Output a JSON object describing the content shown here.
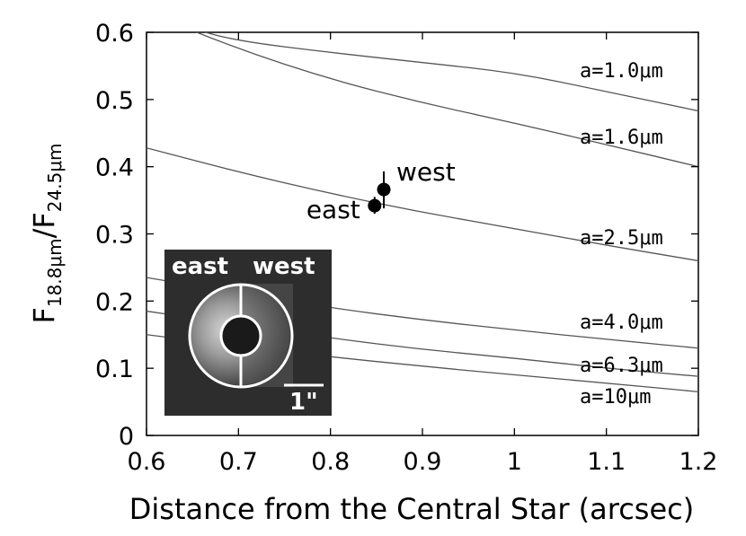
{
  "chart_data": {
    "type": "line",
    "xlabel": "Distance from the Central Star (arcsec)",
    "ylabel": "F18.8μm/F24.5μm",
    "ylabel_parts": {
      "base1": "F",
      "sub1": "18.8μm",
      "slash": "/",
      "base2": "F",
      "sub2": "24.5μm"
    },
    "xlim": [
      0.6,
      1.2
    ],
    "ylim": [
      0,
      0.6
    ],
    "x_ticks": [
      "0.6",
      "0.7",
      "0.8",
      "0.9",
      "1",
      "1.1",
      "1.2"
    ],
    "y_ticks": [
      "0",
      "0.1",
      "0.2",
      "0.3",
      "0.4",
      "0.5",
      "0.6"
    ],
    "grid": false,
    "series": [
      {
        "name": "a=1.0μm",
        "x": [
          0.63,
          0.65,
          0.7,
          0.8,
          0.9,
          1.0,
          1.1,
          1.2
        ],
        "y": [
          0.62,
          0.605,
          0.587,
          0.57,
          0.555,
          0.54,
          0.512,
          0.483
        ]
      },
      {
        "name": "a=1.6μm",
        "x": [
          0.6,
          0.7,
          0.8,
          0.9,
          1.0,
          1.1,
          1.2
        ],
        "y": [
          0.63,
          0.575,
          0.53,
          0.495,
          0.465,
          0.433,
          0.4
        ]
      },
      {
        "name": "a=2.5μm",
        "x": [
          0.6,
          0.7,
          0.8,
          0.9,
          1.0,
          1.1,
          1.2
        ],
        "y": [
          0.428,
          0.392,
          0.36,
          0.332,
          0.308,
          0.283,
          0.26
        ]
      },
      {
        "name": "a=4.0μm",
        "x": [
          0.6,
          0.7,
          0.8,
          0.9,
          1.0,
          1.1,
          1.2
        ],
        "y": [
          0.235,
          0.212,
          0.19,
          0.172,
          0.157,
          0.143,
          0.13
        ]
      },
      {
        "name": "a=6.3μm",
        "x": [
          0.6,
          0.7,
          0.8,
          0.9,
          1.0,
          1.1,
          1.2
        ],
        "y": [
          0.185,
          0.165,
          0.145,
          0.128,
          0.115,
          0.1,
          0.088
        ]
      },
      {
        "name": "a=10μm",
        "x": [
          0.6,
          0.7,
          0.8,
          0.9,
          1.0,
          1.1,
          1.2
        ],
        "y": [
          0.15,
          0.133,
          0.117,
          0.103,
          0.09,
          0.078,
          0.065
        ]
      }
    ],
    "points": [
      {
        "name": "west",
        "x": 0.858,
        "y": 0.366,
        "yerr": [
          0.338,
          0.393
        ]
      },
      {
        "name": "east",
        "x": 0.848,
        "y": 0.342,
        "yerr": [
          0.33,
          0.355
        ]
      }
    ],
    "inset": {
      "labels": {
        "left": "east",
        "right": "west"
      },
      "scale_bar_label": "1\""
    }
  }
}
